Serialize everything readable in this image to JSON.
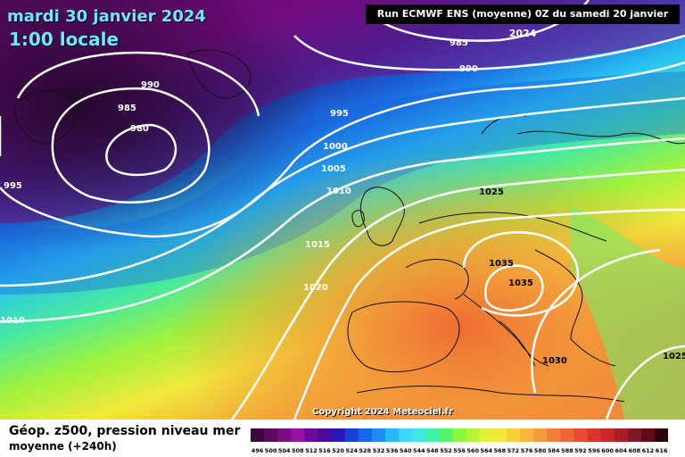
{
  "header": {
    "date": "mardi 30 janvier 2024",
    "time": "1:00 locale",
    "run": "Run ECMWF ENS (moyenne) 0Z du samedi 20 janvier 2024"
  },
  "copyright": "Copyright 2024 Meteociel.fr",
  "footer": {
    "title": "Géop. z500, pression niveau mer",
    "subtitle": "moyenne  (+240h)"
  },
  "isobar_labels": [
    "985",
    "990",
    "990",
    "985",
    "980",
    "995",
    "995",
    "1000",
    "1005",
    "1010",
    "1015",
    "1020",
    "1010",
    "1025",
    "1035",
    "1035",
    "1030",
    "1025"
  ],
  "scale": {
    "values": [
      "496",
      "500",
      "504",
      "508",
      "512",
      "516",
      "520",
      "524",
      "528",
      "532",
      "536",
      "540",
      "544",
      "548",
      "552",
      "556",
      "560",
      "564",
      "568",
      "572",
      "576",
      "580",
      "584",
      "588",
      "592",
      "596",
      "600",
      "604",
      "608",
      "612",
      "616"
    ],
    "colors": [
      "#3b0a3b",
      "#5a0b5e",
      "#7a0d82",
      "#9a10a8",
      "#6a0a9e",
      "#4b0c9c",
      "#2a18b5",
      "#1a3fd4",
      "#1466ea",
      "#1b8df5",
      "#2bb4ff",
      "#3ed6ff",
      "#3fe8e0",
      "#3ff0a6",
      "#52f56a",
      "#8cf53e",
      "#b8f33a",
      "#e2f23a",
      "#f5e83c",
      "#f7d13c",
      "#f7b53c",
      "#f59b3a",
      "#f2803a",
      "#ec6535",
      "#e54c31",
      "#d9352d",
      "#c52829",
      "#a81d26",
      "#861523",
      "#5e0c1c",
      "#2b0309"
    ]
  }
}
